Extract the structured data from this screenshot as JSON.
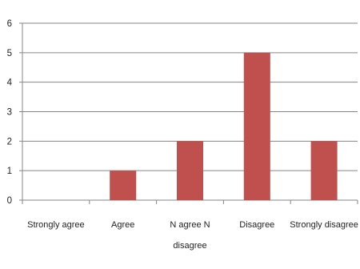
{
  "chart_data": {
    "type": "bar",
    "categories": [
      [
        "Strongly agree"
      ],
      [
        "Agree"
      ],
      [
        "N agree N",
        "disagree"
      ],
      [
        "Disagree"
      ],
      [
        "Strongly disagree"
      ]
    ],
    "values": [
      0,
      1,
      2,
      5,
      2
    ],
    "ylim": [
      0,
      6
    ],
    "yticks": [
      0,
      1,
      2,
      3,
      4,
      5,
      6
    ],
    "grid": true,
    "legend": "none",
    "title": "",
    "xlabel": "",
    "ylabel": ""
  },
  "colors": {
    "bar": "#c0504d",
    "grid": "#868686",
    "axis": "#868686",
    "text": "#222222"
  }
}
